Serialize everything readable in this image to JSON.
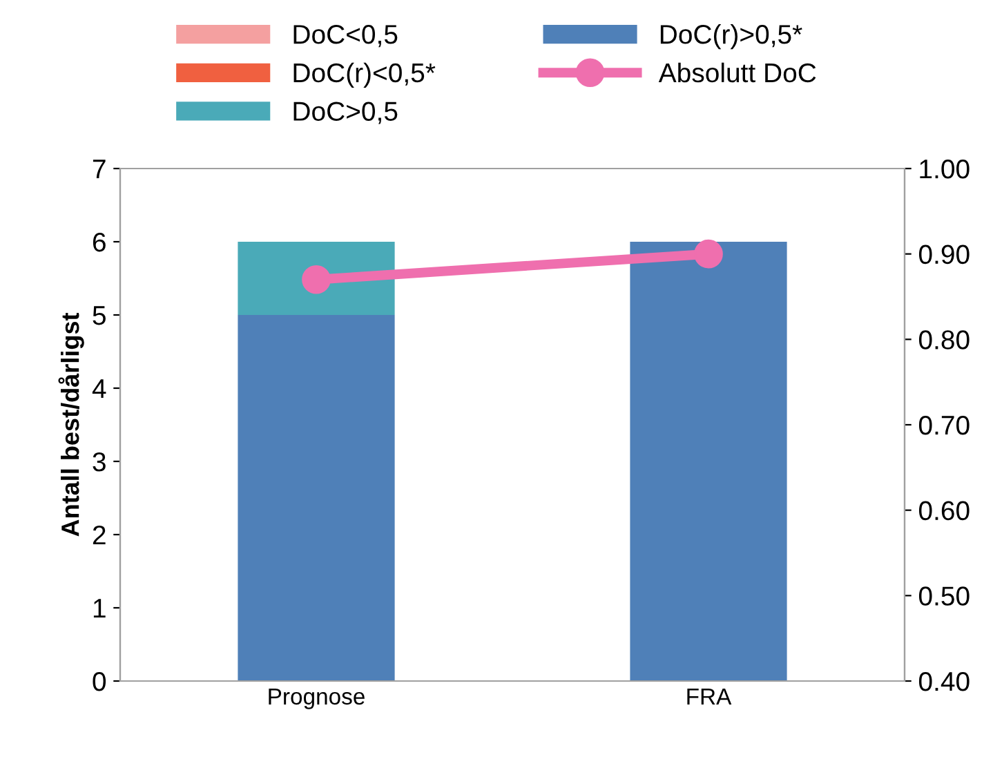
{
  "chart_data": {
    "type": "bar",
    "stacked": true,
    "ylabel": "Antall best/dårligst",
    "categories": [
      "Prognose",
      "FRA"
    ],
    "series": [
      {
        "name": "DoC(r)>0,5*",
        "color": "#4f80b8",
        "values": [
          5,
          6
        ]
      },
      {
        "name": "DoC>0,5",
        "color": "#4aaab8",
        "values": [
          1,
          0
        ]
      },
      {
        "name": "DoC<0,5",
        "color": "#f4a0a0",
        "values": [
          0,
          0
        ]
      },
      {
        "name": "DoC(r)<0,5*",
        "color": "#f06040",
        "values": [
          0,
          0
        ]
      },
      {
        "name": "Absolutt DoC",
        "type": "line",
        "axis": "y2",
        "color": "#ef6fae",
        "marker": "circle",
        "values": [
          0.87,
          0.9
        ]
      }
    ],
    "ylim": [
      0,
      7
    ],
    "yticks": [
      0,
      1,
      2,
      3,
      4,
      5,
      6,
      7
    ],
    "y2lim": [
      0.4,
      1.0
    ],
    "y2ticks": [
      {
        "value": 0.4,
        "label": "0.40"
      },
      {
        "value": 0.5,
        "label": "0.50"
      },
      {
        "value": 0.6,
        "label": "0.60"
      },
      {
        "value": 0.7,
        "label": "0.70"
      },
      {
        "value": 0.8,
        "label": "0.80"
      },
      {
        "value": 0.9,
        "label": "0.90"
      },
      {
        "value": 1.0,
        "label": "1.00"
      }
    ],
    "grid": false,
    "legend": "top"
  }
}
